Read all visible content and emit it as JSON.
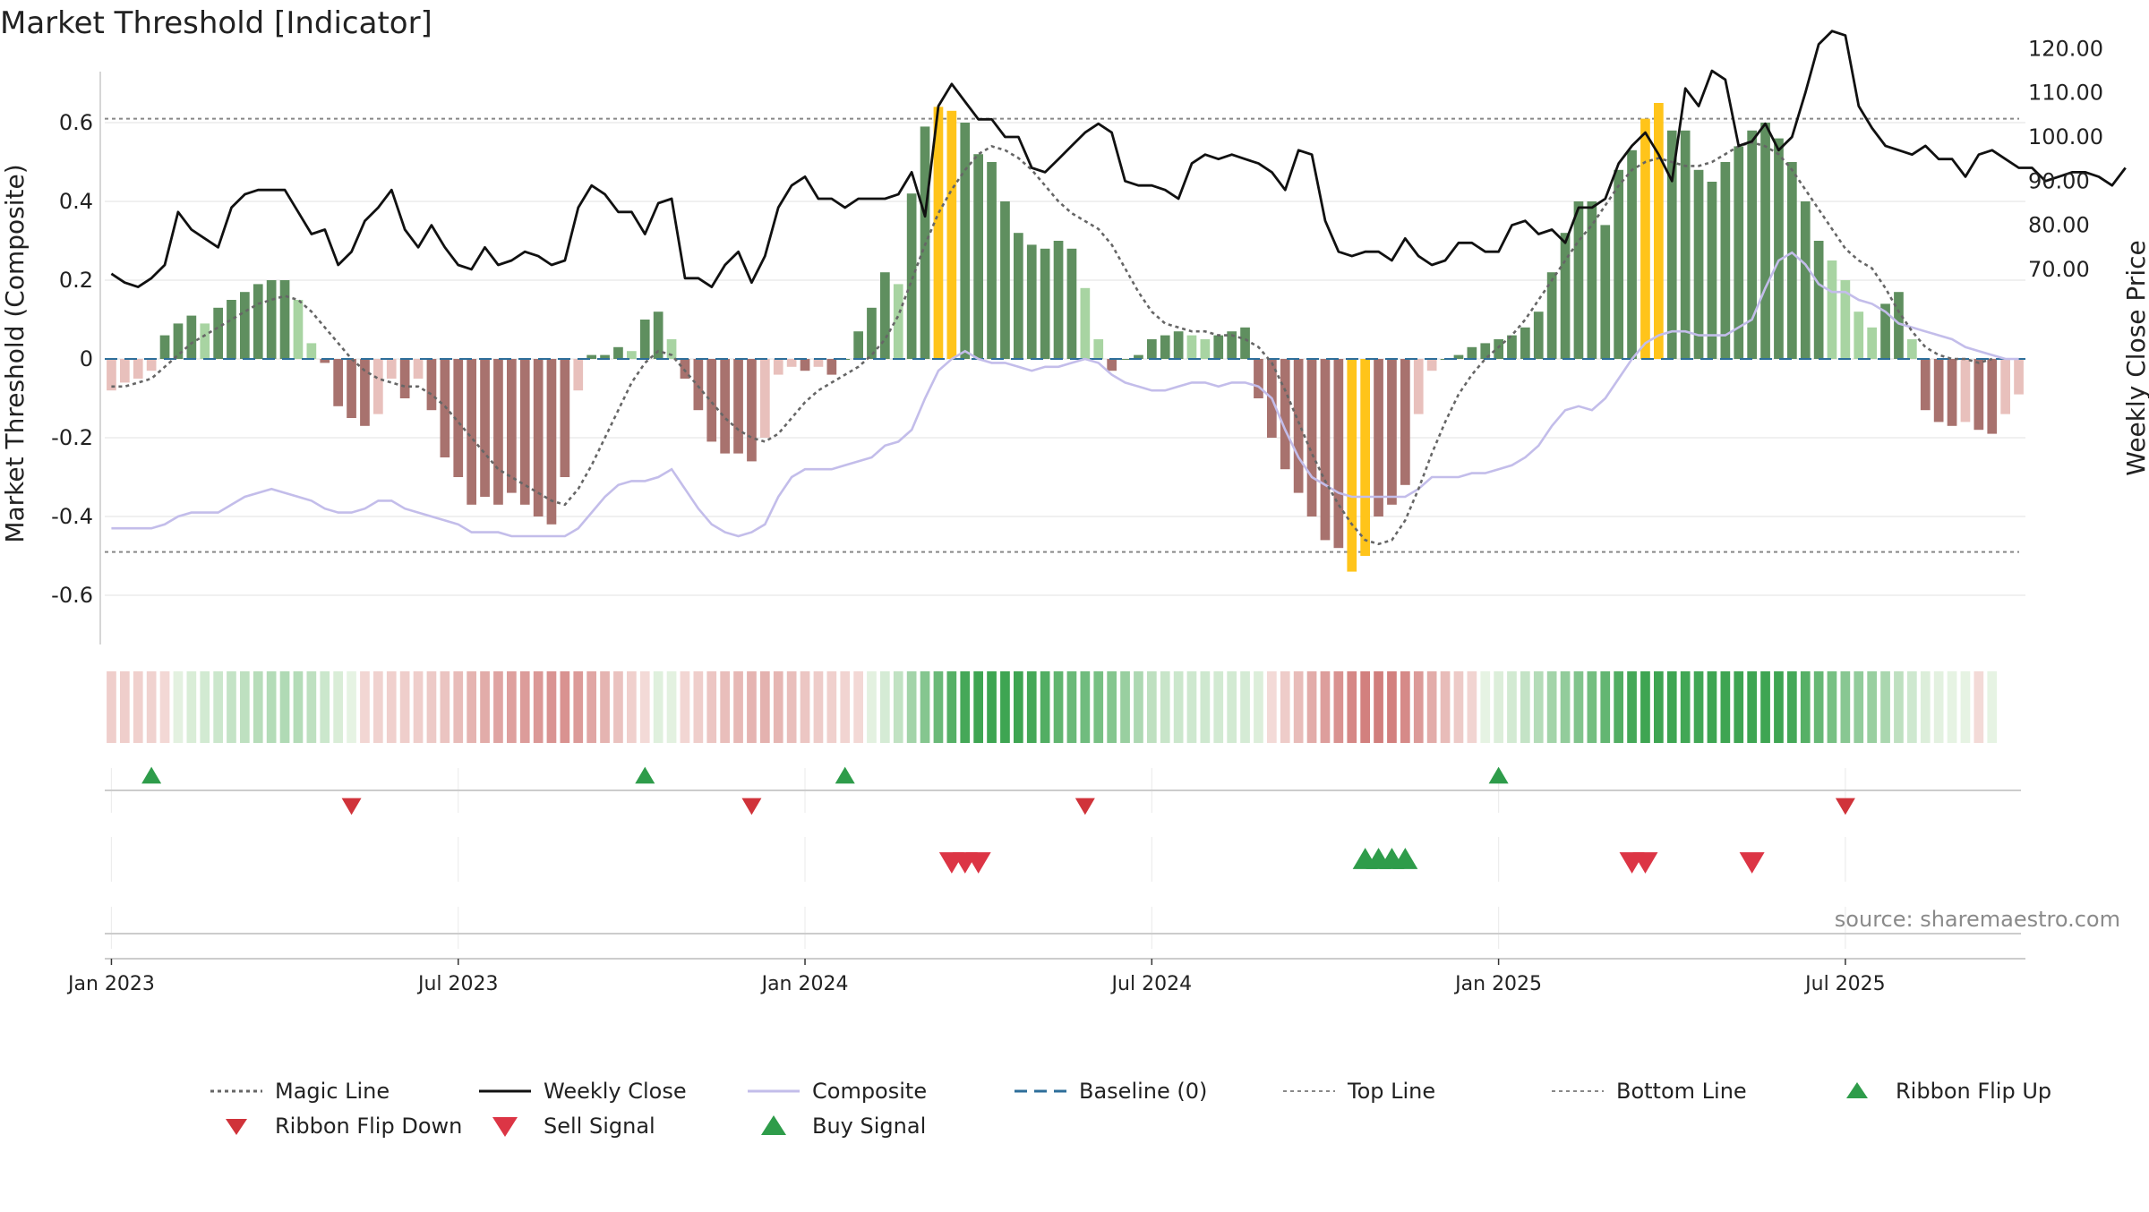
{
  "title": "Market Threshold [Indicator]",
  "source": "source: sharemaestro.com",
  "chart_data": {
    "type": "bar",
    "title": "Market Threshold [Indicator]",
    "ylabel_left": "Market Threshold (Composite)",
    "ylabel_right": "Weekly Close Price",
    "ylim_left": [
      -0.72,
      0.72
    ],
    "ylim_right": [
      61,
      126
    ],
    "left_ticks": [
      "0.6",
      "0.4",
      "0.2",
      "0",
      "-0.2",
      "-0.4",
      "-0.6"
    ],
    "left_tick_values": [
      0.6,
      0.4,
      0.2,
      0,
      -0.2,
      -0.4,
      -0.6
    ],
    "right_ticks": [
      "120.00",
      "110.00",
      "100.00",
      "90.00",
      "80.00",
      "70.00"
    ],
    "right_tick_values": [
      120,
      110,
      100,
      90,
      80,
      70
    ],
    "x_ticks": [
      "Jan 2023",
      "Jul 2023",
      "Jan 2024",
      "Jul 2024",
      "Jan 2025",
      "Jul 2025"
    ],
    "x_tick_weeks": [
      1,
      27,
      53,
      79,
      105,
      131
    ],
    "week_count": 144,
    "top_line": 0.61,
    "bottom_line": -0.49,
    "grid": true,
    "legend_position": "bottom",
    "composite_bars": [
      -0.08,
      -0.06,
      -0.05,
      -0.03,
      0.06,
      0.09,
      0.11,
      0.09,
      0.13,
      0.15,
      0.17,
      0.19,
      0.2,
      0.2,
      0.15,
      0.04,
      -0.01,
      -0.12,
      -0.15,
      -0.17,
      -0.14,
      -0.05,
      -0.1,
      -0.05,
      -0.13,
      -0.25,
      -0.3,
      -0.37,
      -0.35,
      -0.37,
      -0.34,
      -0.37,
      -0.4,
      -0.42,
      -0.3,
      -0.08,
      0.01,
      0.01,
      0.03,
      0.02,
      0.1,
      0.12,
      0.05,
      -0.05,
      -0.13,
      -0.21,
      -0.24,
      -0.24,
      -0.26,
      -0.2,
      -0.04,
      -0.02,
      -0.03,
      -0.02,
      -0.04,
      0.0,
      0.07,
      0.13,
      0.22,
      0.19,
      0.42,
      0.59,
      0.64,
      0.63,
      0.6,
      0.52,
      0.5,
      0.4,
      0.32,
      0.29,
      0.28,
      0.3,
      0.28,
      0.18,
      0.05,
      -0.03,
      0.0,
      0.01,
      0.05,
      0.06,
      0.07,
      0.06,
      0.05,
      0.06,
      0.07,
      0.08,
      -0.1,
      -0.2,
      -0.28,
      -0.34,
      -0.4,
      -0.46,
      -0.48,
      -0.54,
      -0.5,
      -0.4,
      -0.37,
      -0.32,
      -0.14,
      -0.03,
      0.0,
      0.01,
      0.03,
      0.04,
      0.05,
      0.06,
      0.08,
      0.12,
      0.22,
      0.32,
      0.4,
      0.4,
      0.34,
      0.48,
      0.53,
      0.61,
      0.65,
      0.58,
      0.58,
      0.48,
      0.45,
      0.5,
      0.54,
      0.58,
      0.6,
      0.56,
      0.5,
      0.4,
      0.3,
      0.25,
      0.2,
      0.12,
      0.08,
      0.14,
      0.17,
      0.05,
      -0.13,
      -0.16,
      -0.17,
      -0.16,
      -0.18,
      -0.19,
      -0.14,
      -0.09
    ],
    "magic_line": [
      -0.07,
      -0.07,
      -0.06,
      -0.05,
      -0.02,
      0.01,
      0.04,
      0.06,
      0.08,
      0.1,
      0.12,
      0.14,
      0.15,
      0.16,
      0.15,
      0.12,
      0.08,
      0.04,
      0.0,
      -0.03,
      -0.05,
      -0.06,
      -0.07,
      -0.07,
      -0.09,
      -0.12,
      -0.16,
      -0.2,
      -0.24,
      -0.28,
      -0.3,
      -0.32,
      -0.34,
      -0.36,
      -0.37,
      -0.33,
      -0.27,
      -0.2,
      -0.13,
      -0.06,
      -0.01,
      0.02,
      0.01,
      -0.03,
      -0.07,
      -0.11,
      -0.15,
      -0.18,
      -0.2,
      -0.21,
      -0.19,
      -0.15,
      -0.11,
      -0.08,
      -0.06,
      -0.04,
      -0.02,
      0.01,
      0.05,
      0.11,
      0.2,
      0.29,
      0.37,
      0.43,
      0.48,
      0.52,
      0.54,
      0.53,
      0.51,
      0.48,
      0.44,
      0.4,
      0.37,
      0.35,
      0.33,
      0.29,
      0.23,
      0.17,
      0.12,
      0.09,
      0.08,
      0.07,
      0.07,
      0.06,
      0.06,
      0.05,
      0.03,
      -0.01,
      -0.08,
      -0.16,
      -0.24,
      -0.31,
      -0.37,
      -0.42,
      -0.46,
      -0.47,
      -0.46,
      -0.41,
      -0.33,
      -0.24,
      -0.16,
      -0.09,
      -0.04,
      0.0,
      0.03,
      0.06,
      0.1,
      0.15,
      0.2,
      0.25,
      0.3,
      0.34,
      0.39,
      0.44,
      0.48,
      0.5,
      0.51,
      0.5,
      0.49,
      0.49,
      0.5,
      0.52,
      0.54,
      0.55,
      0.54,
      0.52,
      0.48,
      0.43,
      0.38,
      0.33,
      0.28,
      0.25,
      0.23,
      0.18,
      0.12,
      0.07,
      0.03,
      0.01,
      0.0,
      0.0,
      -0.01,
      0.0
    ],
    "composite_line": [
      -0.43,
      -0.43,
      -0.43,
      -0.43,
      -0.42,
      -0.4,
      -0.39,
      -0.39,
      -0.39,
      -0.37,
      -0.35,
      -0.34,
      -0.33,
      -0.34,
      -0.35,
      -0.36,
      -0.38,
      -0.39,
      -0.39,
      -0.38,
      -0.36,
      -0.36,
      -0.38,
      -0.39,
      -0.4,
      -0.41,
      -0.42,
      -0.44,
      -0.44,
      -0.44,
      -0.45,
      -0.45,
      -0.45,
      -0.45,
      -0.45,
      -0.43,
      -0.39,
      -0.35,
      -0.32,
      -0.31,
      -0.31,
      -0.3,
      -0.28,
      -0.33,
      -0.38,
      -0.42,
      -0.44,
      -0.45,
      -0.44,
      -0.42,
      -0.35,
      -0.3,
      -0.28,
      -0.28,
      -0.28,
      -0.27,
      -0.26,
      -0.25,
      -0.22,
      -0.21,
      -0.18,
      -0.1,
      -0.03,
      0.0,
      0.02,
      0.0,
      -0.01,
      -0.01,
      -0.02,
      -0.03,
      -0.02,
      -0.02,
      -0.01,
      0.0,
      -0.01,
      -0.04,
      -0.06,
      -0.07,
      -0.08,
      -0.08,
      -0.07,
      -0.06,
      -0.06,
      -0.07,
      -0.06,
      -0.06,
      -0.07,
      -0.1,
      -0.18,
      -0.25,
      -0.3,
      -0.32,
      -0.34,
      -0.35,
      -0.35,
      -0.35,
      -0.35,
      -0.35,
      -0.33,
      -0.3,
      -0.3,
      -0.3,
      -0.29,
      -0.29,
      -0.28,
      -0.27,
      -0.25,
      -0.22,
      -0.17,
      -0.13,
      -0.12,
      -0.13,
      -0.1,
      -0.05,
      0.0,
      0.04,
      0.06,
      0.07,
      0.07,
      0.06,
      0.06,
      0.06,
      0.08,
      0.1,
      0.18,
      0.25,
      0.27,
      0.24,
      0.19,
      0.17,
      0.17,
      0.15,
      0.14,
      0.12,
      0.09,
      0.08,
      0.07,
      0.06,
      0.05,
      0.03,
      0.02,
      0.01,
      0.0,
      0.0
    ],
    "weekly_close": [
      69,
      67,
      66,
      68,
      71,
      83,
      79,
      77,
      75,
      84,
      87,
      88,
      88,
      88,
      83,
      78,
      79,
      71,
      74,
      81,
      84,
      88,
      79,
      75,
      80,
      75,
      71,
      70,
      75,
      71,
      72,
      74,
      73,
      71,
      72,
      84,
      89,
      87,
      83,
      83,
      78,
      85,
      86,
      68,
      68,
      66,
      71,
      74,
      67,
      73,
      84,
      89,
      91,
      86,
      86,
      84,
      86,
      86,
      86,
      87,
      92,
      82,
      107,
      112,
      108,
      104,
      104,
      100,
      100,
      93,
      92,
      95,
      98,
      101,
      103,
      101,
      90,
      89,
      89,
      88,
      86,
      94,
      96,
      95,
      96,
      95,
      94,
      92,
      88,
      97,
      96,
      81,
      74,
      73,
      74,
      74,
      72,
      77,
      73,
      71,
      72,
      76,
      76,
      74,
      74,
      80,
      81,
      78,
      79,
      76,
      84,
      84,
      86,
      94,
      98,
      101,
      96,
      90,
      111,
      107,
      115,
      113,
      98,
      99,
      103,
      97,
      100,
      110,
      121,
      124,
      123,
      107,
      102,
      98,
      97,
      96,
      98,
      95,
      95,
      91,
      96,
      97,
      95,
      93,
      93,
      90,
      91,
      92,
      92,
      91,
      89,
      93
    ]
  },
  "ribbon": {
    "label": "Ribbon"
  },
  "signals": {
    "ribbon_flip_up_weeks": [
      3,
      40,
      55,
      104
    ],
    "ribbon_flip_down_weeks": [
      18,
      48,
      73,
      130
    ],
    "sell_signal_weeks": [
      63,
      64,
      65,
      114,
      115,
      123
    ],
    "buy_signal_weeks": [
      94,
      95,
      96,
      97
    ]
  },
  "legend": [
    {
      "label": "Magic Line",
      "icon": "dotted-line-icon"
    },
    {
      "label": "Weekly Close",
      "icon": "solid-line-icon"
    },
    {
      "label": "Composite",
      "icon": "lavender-line-icon"
    },
    {
      "label": "Baseline (0)",
      "icon": "dashed-line-icon"
    },
    {
      "label": "Top Line",
      "icon": "dotted-line-icon"
    },
    {
      "label": "Bottom Line",
      "icon": "dotted-line-icon"
    },
    {
      "label": "Ribbon Flip Up",
      "icon": "triangle-up-icon"
    },
    {
      "label": "Ribbon Flip Down",
      "icon": "triangle-down-icon"
    },
    {
      "label": "Sell Signal",
      "icon": "triangle-down-icon"
    },
    {
      "label": "Buy Signal",
      "icon": "triangle-up-icon"
    }
  ],
  "colors": {
    "pos_strong": "#5f8f5f",
    "pos_weak": "#a8d4a2",
    "neg_strong": "#a8726e",
    "neg_weak": "#e8c0bc",
    "extreme": "#ffc41a",
    "close_line": "#111111",
    "composite_line": "#c3bdea",
    "magic_line": "#666666",
    "baseline": "#2d6e9a",
    "threshold": "#888888",
    "flip_up": "#2e9c4a",
    "flip_down": "#d0333a",
    "sell": "#dc3545",
    "buy": "#2e9c4a"
  }
}
